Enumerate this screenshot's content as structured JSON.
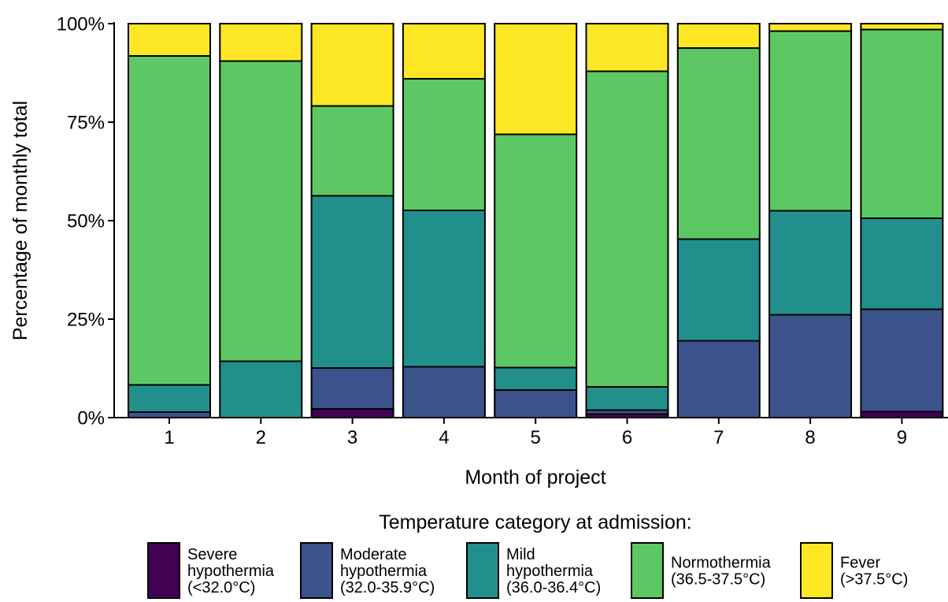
{
  "chart_data": {
    "type": "bar",
    "stacked": true,
    "categories": [
      "1",
      "2",
      "3",
      "4",
      "5",
      "6",
      "7",
      "8",
      "9"
    ],
    "xlabel": "Month of project",
    "ylabel": "Percentage of monthly total",
    "ylim": [
      0,
      100
    ],
    "y_ticks": [
      "0%",
      "25%",
      "50%",
      "75%",
      "100%"
    ],
    "legend_title": "Temperature category at admission:",
    "legend_position": "bottom",
    "series": [
      {
        "name": "Severe hypothermia (<32.0°C)",
        "name_lines": [
          "Severe",
          "hypothermia",
          "(<32.0°C)"
        ],
        "color": "#440154",
        "values": [
          0,
          0,
          2.2,
          0,
          0,
          0.9,
          0,
          0,
          1.5
        ]
      },
      {
        "name": "Moderate hypothermia (32.0-35.9°C)",
        "name_lines": [
          "Moderate",
          "hypothermia",
          "(32.0-35.9°C)"
        ],
        "color": "#3b528b",
        "values": [
          1.4,
          0,
          10.4,
          12.9,
          7.0,
          1.0,
          19.5,
          26.1,
          26.0
        ]
      },
      {
        "name": "Mild hypothermia (36.0-36.4°C)",
        "name_lines": [
          "Mild",
          "hypothermia",
          "(36.0-36.4°C)"
        ],
        "color": "#21908c",
        "values": [
          6.9,
          14.3,
          43.7,
          39.7,
          5.7,
          5.9,
          25.8,
          26.4,
          23.1
        ]
      },
      {
        "name": "Normothermia (36.5-37.5°C)",
        "name_lines": [
          "Normothermia",
          "(36.5-37.5°C)"
        ],
        "color": "#5dc863",
        "values": [
          83.5,
          76.2,
          22.8,
          33.4,
          59.2,
          80.1,
          48.5,
          45.6,
          47.9
        ]
      },
      {
        "name": "Fever (>37.5°C)",
        "name_lines": [
          "Fever",
          "(>37.5°C)"
        ],
        "color": "#fde725",
        "values": [
          8.2,
          9.5,
          20.9,
          14.0,
          28.1,
          12.1,
          6.2,
          1.9,
          1.5
        ]
      }
    ],
    "grid": false
  }
}
